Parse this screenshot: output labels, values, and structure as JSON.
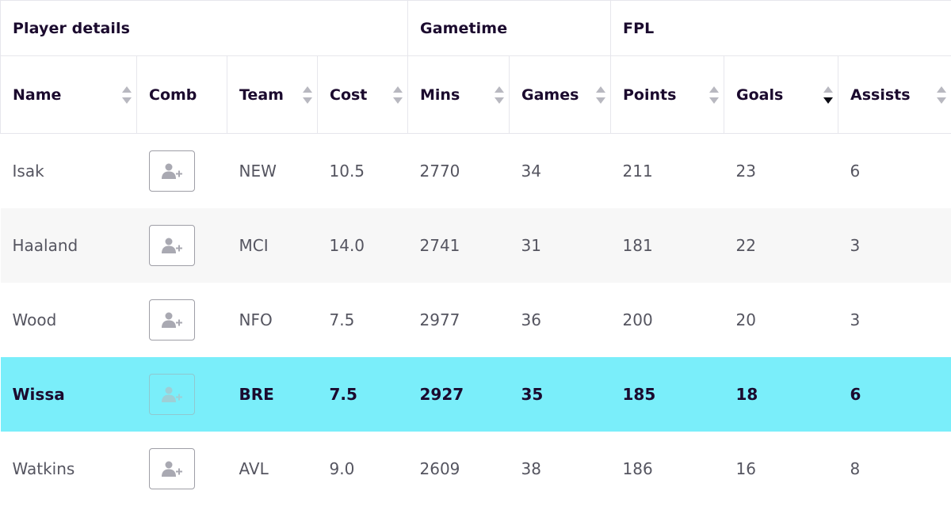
{
  "groups": [
    {
      "label": "Player details",
      "span": 4
    },
    {
      "label": "Gametime",
      "span": 2
    },
    {
      "label": "FPL",
      "span": 3
    }
  ],
  "columns": [
    {
      "key": "name",
      "label": "Name",
      "sortable": true,
      "sort": "none"
    },
    {
      "key": "comb",
      "label": "Comb",
      "sortable": false,
      "sort": "none"
    },
    {
      "key": "team",
      "label": "Team",
      "sortable": true,
      "sort": "none"
    },
    {
      "key": "cost",
      "label": "Cost",
      "sortable": true,
      "sort": "none"
    },
    {
      "key": "mins",
      "label": "Mins",
      "sortable": true,
      "sort": "none"
    },
    {
      "key": "games",
      "label": "Games",
      "sortable": true,
      "sort": "none"
    },
    {
      "key": "points",
      "label": "Points",
      "sortable": true,
      "sort": "none"
    },
    {
      "key": "goals",
      "label": "Goals",
      "sortable": true,
      "sort": "desc"
    },
    {
      "key": "assists",
      "label": "Assists",
      "sortable": true,
      "sort": "none"
    }
  ],
  "rows": [
    {
      "name": "Isak",
      "team": "NEW",
      "cost": "10.5",
      "mins": "2770",
      "games": "34",
      "points": "211",
      "goals": "23",
      "assists": "6",
      "highlighted": false
    },
    {
      "name": "Haaland",
      "team": "MCI",
      "cost": "14.0",
      "mins": "2741",
      "games": "31",
      "points": "181",
      "goals": "22",
      "assists": "3",
      "highlighted": false
    },
    {
      "name": "Wood",
      "team": "NFO",
      "cost": "7.5",
      "mins": "2977",
      "games": "36",
      "points": "200",
      "goals": "20",
      "assists": "3",
      "highlighted": false
    },
    {
      "name": "Wissa",
      "team": "BRE",
      "cost": "7.5",
      "mins": "2927",
      "games": "35",
      "points": "185",
      "goals": "18",
      "assists": "6",
      "highlighted": true
    },
    {
      "name": "Watkins",
      "team": "AVL",
      "cost": "9.0",
      "mins": "2609",
      "games": "38",
      "points": "186",
      "goals": "16",
      "assists": "8",
      "highlighted": false
    }
  ],
  "icons": {
    "comb_button": "add-user-icon",
    "sort": "sort-arrows-icon"
  },
  "colors": {
    "highlight": "#7aeefa",
    "alt_row": "#f7f7f7",
    "header_text": "#1b0a2e",
    "cell_text": "#555560"
  }
}
